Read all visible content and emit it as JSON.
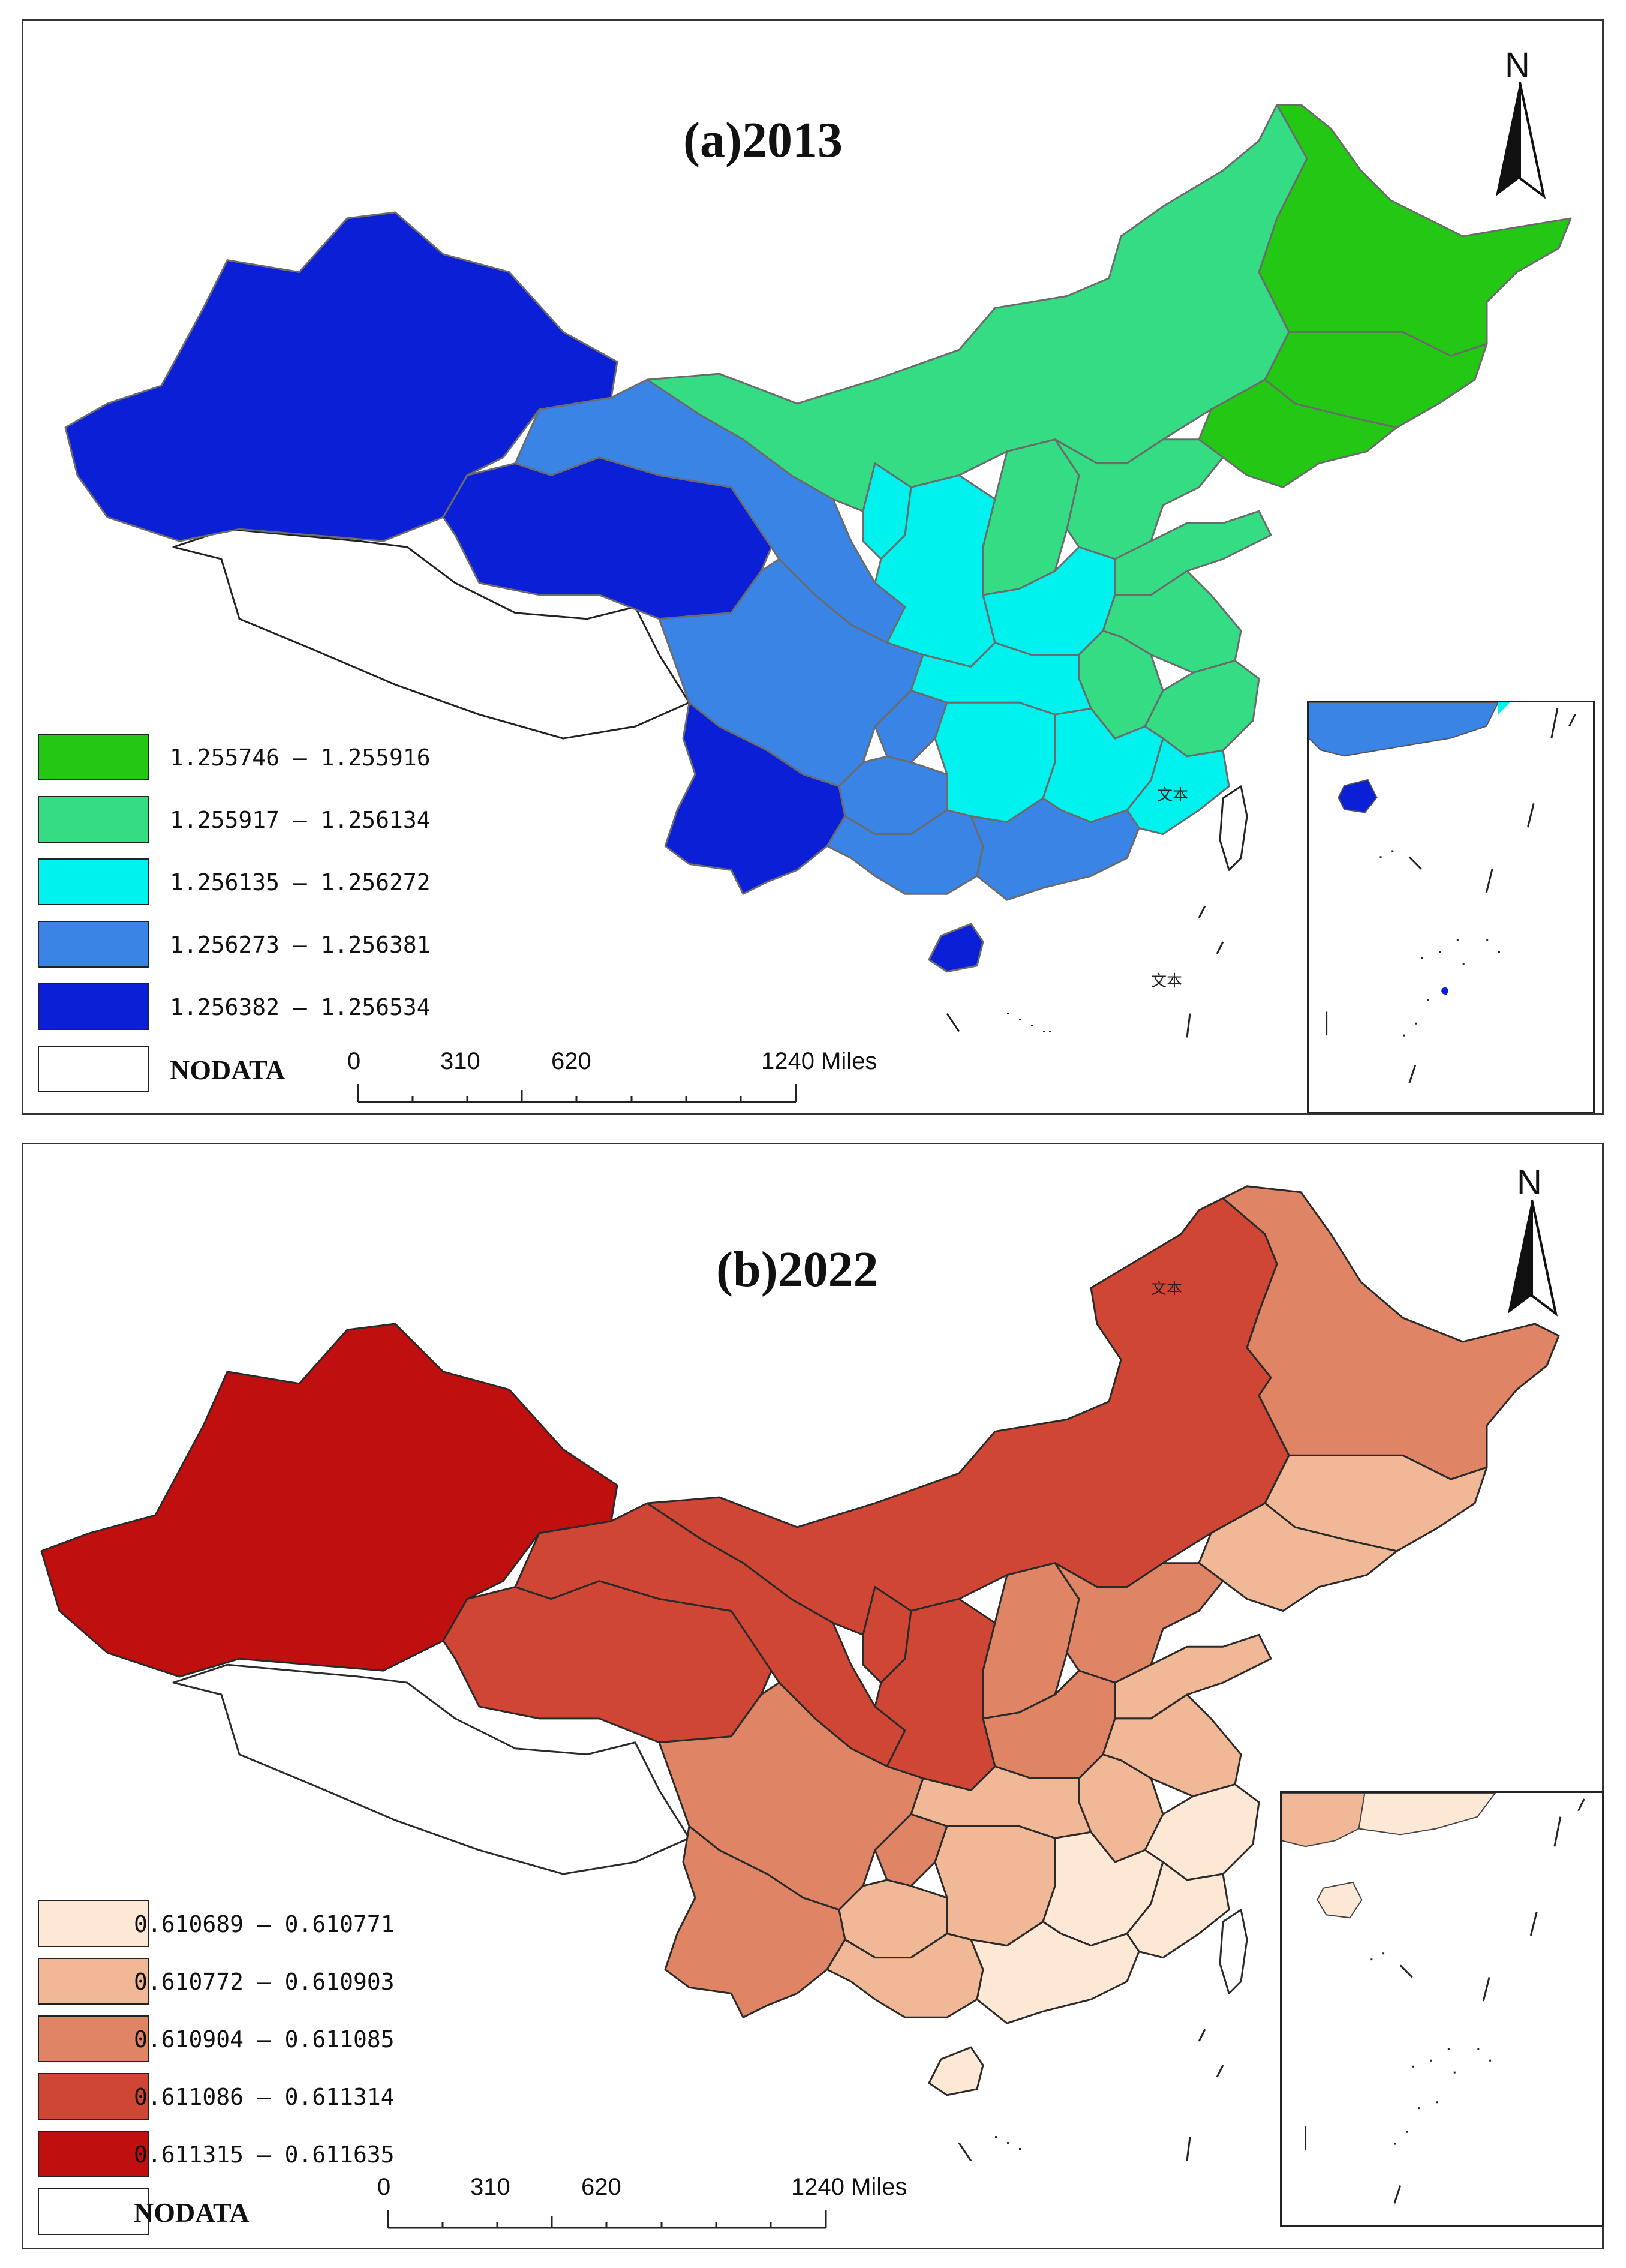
{
  "panels": [
    {
      "title": "(a)2013",
      "legend": [
        {
          "label": "1.255746 – 1.255916",
          "color": "#22c814"
        },
        {
          "label": "1.255917 – 1.256134",
          "color": "#34dc84"
        },
        {
          "label": "1.256135 – 1.256272",
          "color": "#00f2ee"
        },
        {
          "label": "1.256273 – 1.256381",
          "color": "#3a84e6"
        },
        {
          "label": "1.256382 – 1.256534",
          "color": "#0a1fd6"
        }
      ],
      "nodata_label": "NODATA",
      "nodata_color": "#ffffff",
      "scale": {
        "ticks": [
          "0",
          "310",
          "620",
          "1240 Miles"
        ]
      },
      "north_label": "N",
      "annotation": "文本"
    },
    {
      "title": "(b)2022",
      "legend": [
        {
          "label": "0.610689 – 0.610771",
          "color": "#fde8d6"
        },
        {
          "label": "0.610772 – 0.610903",
          "color": "#f0b896"
        },
        {
          "label": "0.610904 – 0.611085",
          "color": "#e08466"
        },
        {
          "label": "0.611086 – 0.611314",
          "color": "#d04634"
        },
        {
          "label": "0.611315 – 0.611635",
          "color": "#c00f0f"
        }
      ],
      "nodata_label": "NODATA",
      "nodata_color": "#ffffff",
      "scale": {
        "ticks": [
          "0",
          "310",
          "620",
          "1240 Miles"
        ]
      },
      "north_label": "N",
      "annotation": "文本"
    }
  ]
}
